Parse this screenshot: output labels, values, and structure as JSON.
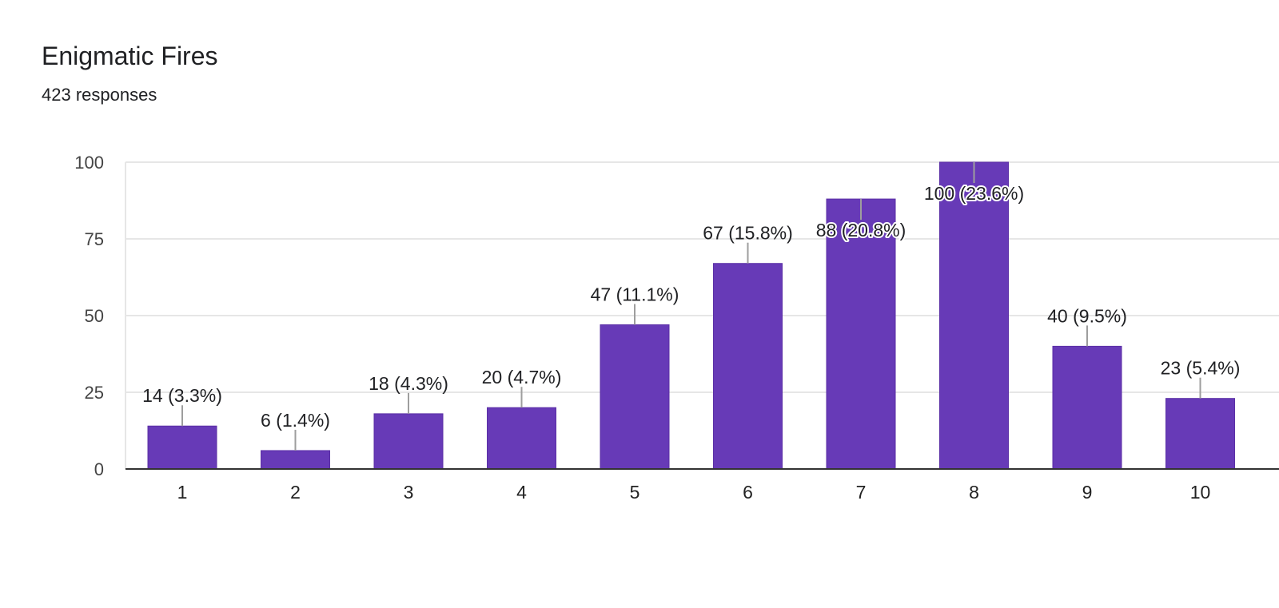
{
  "header": {
    "title": "Enigmatic Fires",
    "subtitle": "423 responses"
  },
  "chart_data": {
    "type": "bar",
    "categories": [
      "1",
      "2",
      "3",
      "4",
      "5",
      "6",
      "7",
      "8",
      "9",
      "10"
    ],
    "values": [
      14,
      6,
      18,
      20,
      47,
      67,
      88,
      100,
      40,
      23
    ],
    "data_labels": [
      "14 (3.3%)",
      "6 (1.4%)",
      "18 (4.3%)",
      "20 (4.7%)",
      "47 (11.1%)",
      "67 (15.8%)",
      "88 (20.8%)",
      "100 (23.6%)",
      "40 (9.5%)",
      "23 (5.4%)"
    ],
    "title": "Enigmatic Fires",
    "subtitle": "423 responses",
    "xlabel": "",
    "ylabel": "",
    "ylim": [
      0,
      100
    ],
    "yticks": [
      0,
      25,
      50,
      75,
      100
    ],
    "grid": true,
    "legend": "none",
    "bar_color": "#673ab7"
  }
}
